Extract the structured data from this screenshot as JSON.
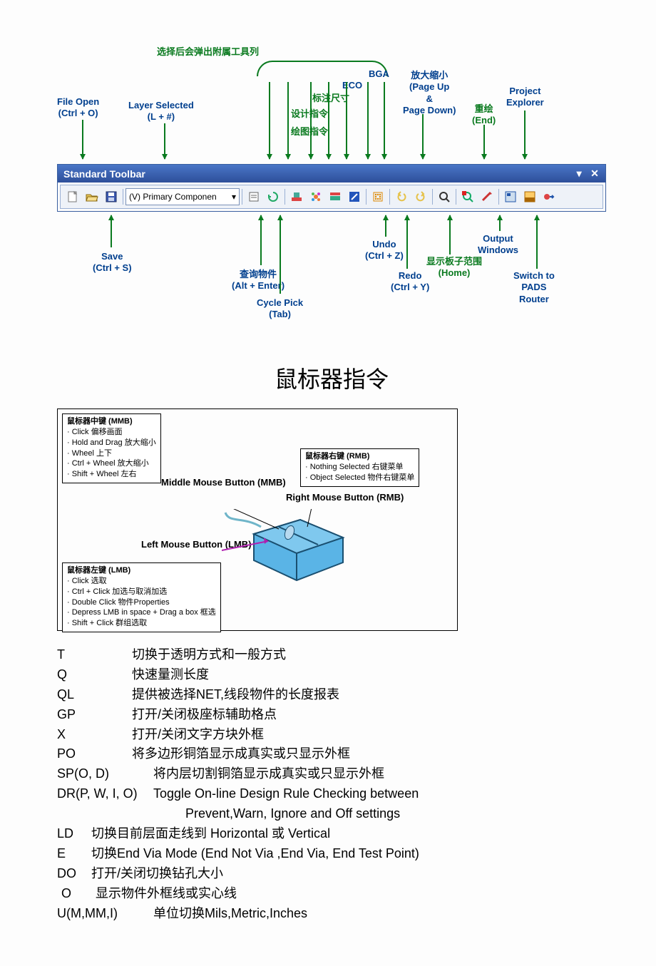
{
  "top_callouts": {
    "popup_hint": "选择后会弹出附属工具列",
    "file_open": "File Open\n(Ctrl + O)",
    "layer_selected": "Layer Selected\n(L + #)",
    "draw_cmd": "绘图指令",
    "design_cmd": "设计指令",
    "dim_annot": "标注尺寸",
    "eco": "ECO",
    "bga": "BGA",
    "zoom": "放大缩小\n(Page Up\n&\nPage Down)",
    "redraw": "重绘\n(End)",
    "proj_explorer": "Project\nExplorer"
  },
  "toolbar": {
    "title": "Standard Toolbar",
    "layer_text": "(V) Primary Componen",
    "icons": [
      {
        "name": "new-icon",
        "color": "#ffffff",
        "stroke": "#666"
      },
      {
        "name": "open-icon",
        "color": "#e8c65a"
      },
      {
        "name": "save-icon",
        "color": "#3b59b0"
      }
    ]
  },
  "bottom_callouts": {
    "save": "Save\n(Ctrl + S)",
    "query": "查询物件\n(Alt + Enter)",
    "cycle": "Cycle Pick\n(Tab)",
    "undo": "Undo\n(Ctrl + Z)",
    "redo": "Redo\n(Ctrl + Y)",
    "board_extent": "显示板子范围\n(Home)",
    "output_win": "Output\nWindows",
    "switch_pads": "Switch to\nPADS\nRouter"
  },
  "section_title": "鼠标器指令",
  "mouse": {
    "mmb_box_head": "鼠标器中键 (MMB)",
    "mmb_rows": [
      "· Click   偏移画面",
      "· Hold and Drag   放大缩小",
      "· Wheel   上下",
      "· Ctrl + Wheel   放大缩小",
      "· Shift + Wheel   左右"
    ],
    "rmb_box_head": "鼠标器右键 (RMB)",
    "rmb_rows": [
      "· Nothing Selected   右键菜单",
      "· Object Selected   物件右键菜单"
    ],
    "lmb_box_head": "鼠标器左键 (LMB)",
    "lmb_rows": [
      "· Click   选取",
      "· Ctrl + Click   加选与取消加选",
      "· Double Click   物件Properties",
      "· Depress LMB in space + Drag a box   框选",
      "· Shift + Click   群组选取"
    ],
    "mmb_label": "Middle Mouse\nButton (MMB)",
    "rmb_label": "Right Mouse\nButton (RMB)",
    "lmb_label": "Left Mouse\nButton (LMB)",
    "mouse_colors": {
      "body": "#5ab4e6",
      "outline": "#1a4f70",
      "scroll": "#b7d9ef",
      "cable": "#6fb5c9",
      "lmb_arrow": "#b020b0"
    }
  },
  "shortcuts": [
    {
      "k": "T",
      "d": "切换于透明方式和一般方式"
    },
    {
      "k": "Q",
      "d": "快速量测长度"
    },
    {
      "k": "QL",
      "d": "提供被选择NET,线段物件的长度报表"
    },
    {
      "k": "GP",
      "d": "打开/关闭极座标辅助格点"
    },
    {
      "k": "X",
      "d": "打开/关闭文字方块外框"
    },
    {
      "k": "PO",
      "d": "将多边形铜箔显示成真实或只显示外框"
    },
    {
      "k": "SP(O, D)",
      "d": "将内层切割铜箔显示成真实或只显示外框"
    },
    {
      "k": "DR(P, W, I, O)",
      "d": "Toggle On-line Design Rule Checking between"
    },
    {
      "k": "",
      "d": "Prevent,Warn, Ignore and Off settings",
      "indent": true
    },
    {
      "k": "LD",
      "d": "切换目前层面走线到 Horizontal 或 Vertical",
      "tight": true
    },
    {
      "k": "E",
      "d": "切换End Via Mode (End Not Via ,End Via, End Test Point)",
      "tight": true
    },
    {
      "k": "DO",
      "d": "打开/关闭切换钻孔大小",
      "tight": true
    },
    {
      "k": "O",
      "d": "显示物件外框线或实心线",
      "tight": true,
      "pad": true
    },
    {
      "k": "U(M,MM,I)",
      "d": "单位切换Mils,Metric,Inches",
      "tight": true
    }
  ],
  "colors": {
    "callout_blue": "#003f8e",
    "callout_green": "#0a7a1f",
    "toolbar_grad_top": "#4a76c7",
    "toolbar_grad_bot": "#2d4f9a"
  }
}
